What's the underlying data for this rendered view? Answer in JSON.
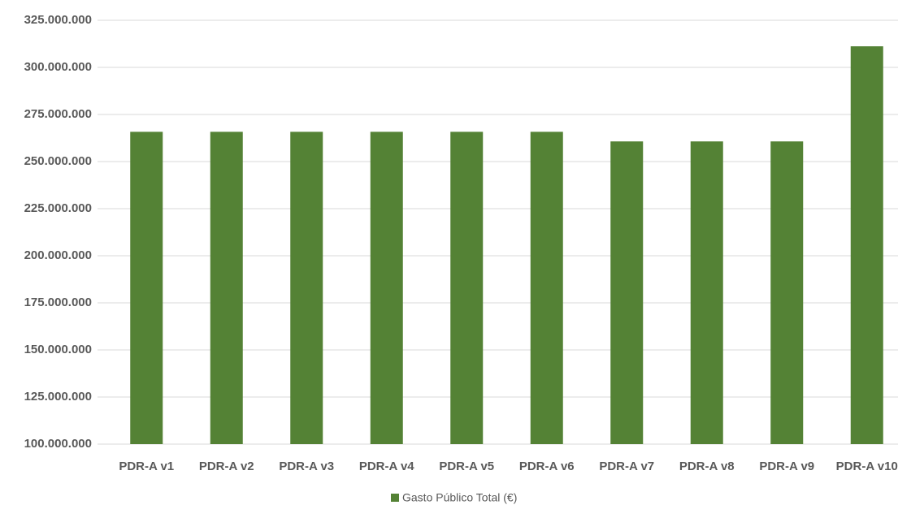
{
  "chart_data": {
    "type": "bar",
    "categories": [
      "PDR-A v1",
      "PDR-A v2",
      "PDR-A v3",
      "PDR-A v4",
      "PDR-A v5",
      "PDR-A v6",
      "PDR-A v7",
      "PDR-A v8",
      "PDR-A v9",
      "PDR-A v10"
    ],
    "series": [
      {
        "name": "Gasto Público Total (€)",
        "color": "#548235",
        "values": [
          265800000,
          265800000,
          265800000,
          265800000,
          265800000,
          265800000,
          260700000,
          260700000,
          260700000,
          311200000
        ]
      }
    ],
    "ylim": [
      100000000,
      325000000
    ],
    "yticks": [
      {
        "value": 100000000,
        "label": "100.000.000"
      },
      {
        "value": 125000000,
        "label": "125.000.000"
      },
      {
        "value": 150000000,
        "label": "150.000.000"
      },
      {
        "value": 175000000,
        "label": "175.000.000"
      },
      {
        "value": 200000000,
        "label": "200.000.000"
      },
      {
        "value": 225000000,
        "label": "225.000.000"
      },
      {
        "value": 250000000,
        "label": "250.000.000"
      },
      {
        "value": 275000000,
        "label": "275.000.000"
      },
      {
        "value": 300000000,
        "label": "300.000.000"
      },
      {
        "value": 325000000,
        "label": "325.000.000"
      }
    ],
    "grid": true,
    "legend": "bottom"
  }
}
